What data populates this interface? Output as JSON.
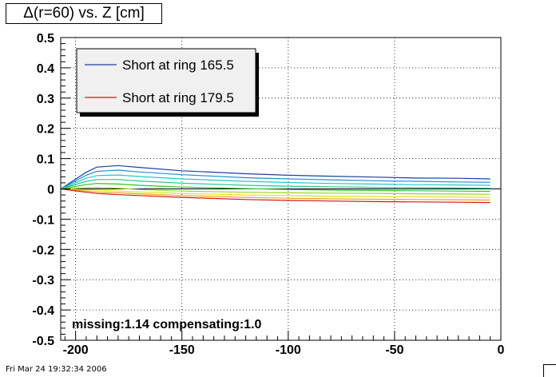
{
  "chart_data": {
    "type": "line",
    "title": "Δ(r=60) vs. Z [cm]",
    "xlabel": "",
    "ylabel": "",
    "xlim": [
      -207,
      0
    ],
    "ylim": [
      -0.5,
      0.5
    ],
    "xticks": [
      -200,
      -150,
      -100,
      -50,
      0
    ],
    "yticks": [
      -0.5,
      -0.4,
      -0.3,
      -0.2,
      -0.1,
      0,
      0.1,
      0.2,
      0.3,
      0.4,
      0.5
    ],
    "ytick_labels": [
      "-0.5",
      "-0.4",
      "-0.3",
      "-0.2",
      "-0.1",
      "0",
      "0.1",
      "0.2",
      "0.3",
      "0.4",
      "0.5"
    ],
    "xtick_labels": [
      "-200",
      "-150",
      "-100",
      "-50",
      "0"
    ],
    "grid": true,
    "legend_position": "top-left",
    "annotation": "missing:1.14 compensating:1.0",
    "x": [
      -207,
      -195,
      -190,
      -180,
      -170,
      -150,
      -120,
      -100,
      -80,
      -60,
      -40,
      -20,
      -5
    ],
    "series": [
      {
        "name": "Short at ring 165.5",
        "color": "#1f3fa0",
        "values": [
          0.0,
          0.055,
          0.072,
          0.077,
          0.071,
          0.06,
          0.05,
          0.045,
          0.042,
          0.039,
          0.036,
          0.035,
          0.033
        ]
      },
      {
        "name": "",
        "color": "#1f8fd8",
        "values": [
          0.0,
          0.045,
          0.058,
          0.062,
          0.056,
          0.047,
          0.037,
          0.033,
          0.03,
          0.027,
          0.025,
          0.023,
          0.022
        ]
      },
      {
        "name": "",
        "color": "#22c8c8",
        "values": [
          0.0,
          0.035,
          0.044,
          0.046,
          0.041,
          0.033,
          0.025,
          0.021,
          0.018,
          0.016,
          0.014,
          0.013,
          0.012
        ]
      },
      {
        "name": "",
        "color": "#22c88a",
        "values": [
          0.0,
          0.025,
          0.031,
          0.031,
          0.026,
          0.019,
          0.012,
          0.009,
          0.007,
          0.005,
          0.004,
          0.003,
          0.002
        ]
      },
      {
        "name": "",
        "color": "#30c030",
        "values": [
          0.0,
          0.014,
          0.018,
          0.016,
          0.012,
          0.006,
          0.001,
          -0.002,
          -0.004,
          -0.005,
          -0.006,
          -0.007,
          -0.008
        ]
      },
      {
        "name": "",
        "color": "#9ad22a",
        "values": [
          0.0,
          0.004,
          0.005,
          0.002,
          -0.002,
          -0.007,
          -0.011,
          -0.013,
          -0.014,
          -0.015,
          -0.016,
          -0.017,
          -0.018
        ]
      },
      {
        "name": "",
        "color": "#e0e020",
        "values": [
          0.0,
          -0.003,
          -0.004,
          -0.007,
          -0.01,
          -0.015,
          -0.02,
          -0.022,
          -0.024,
          -0.025,
          -0.026,
          -0.027,
          -0.028
        ]
      },
      {
        "name": "",
        "color": "#f0a020",
        "values": [
          0.0,
          -0.007,
          -0.01,
          -0.013,
          -0.016,
          -0.022,
          -0.028,
          -0.031,
          -0.033,
          -0.034,
          -0.035,
          -0.036,
          -0.037
        ]
      },
      {
        "name": "Short at ring 179.5",
        "color": "#d01818",
        "values": [
          0.0,
          -0.011,
          -0.015,
          -0.019,
          -0.022,
          -0.028,
          -0.035,
          -0.038,
          -0.04,
          -0.042,
          -0.043,
          -0.044,
          -0.045
        ]
      }
    ],
    "zero_line_color": "#000000"
  },
  "footer_text": "Fri Mar 24 19:32:34 2006"
}
